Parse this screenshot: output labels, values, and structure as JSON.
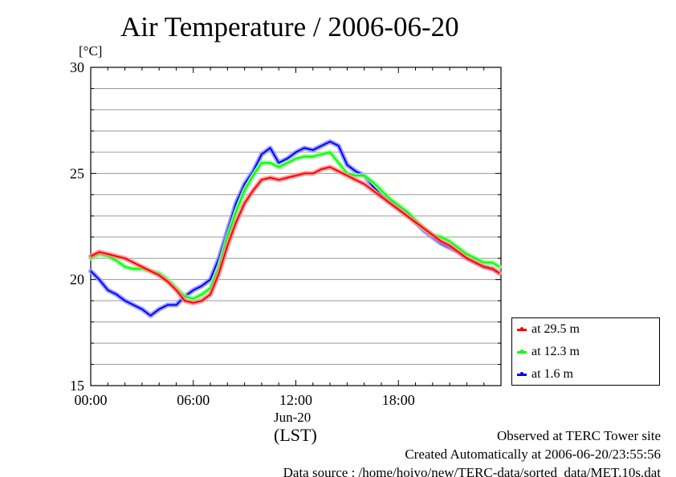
{
  "chart_data": {
    "type": "line",
    "title": "Air Temperature / 2006-06-20",
    "ylabel": "[°C]",
    "xlabel": "(LST)",
    "date_label": "Jun-20",
    "x_unit": "hours since 2006-06-20 00:00 LST",
    "xlim": [
      0,
      24
    ],
    "ylim": [
      15,
      30
    ],
    "x_ticks": [
      0,
      6,
      12,
      18
    ],
    "x_tick_labels": [
      "00:00",
      "06:00",
      "12:00",
      "18:00"
    ],
    "y_ticks": [
      15,
      20,
      25,
      30
    ],
    "y_tick_labels": [
      "15",
      "20",
      "25",
      "30"
    ],
    "grid": true,
    "legend_position": "bottom-right, outside plot",
    "x": [
      0,
      0.5,
      1,
      1.5,
      2,
      2.5,
      3,
      3.5,
      4,
      4.5,
      5,
      5.5,
      6,
      6.5,
      7,
      7.5,
      8,
      8.5,
      9,
      9.5,
      10,
      10.5,
      11,
      11.5,
      12,
      12.5,
      13,
      13.5,
      14,
      14.5,
      15,
      15.5,
      16,
      16.5,
      17,
      17.5,
      18,
      18.5,
      19,
      19.5,
      20,
      20.5,
      21,
      21.5,
      22,
      22.5,
      23,
      23.5,
      23.9
    ],
    "series": [
      {
        "name": "at 29.5 m",
        "color": "#ff0000",
        "values": [
          21.1,
          21.3,
          21.2,
          21.1,
          21.0,
          20.8,
          20.6,
          20.4,
          20.2,
          19.9,
          19.5,
          19.0,
          18.9,
          19.0,
          19.3,
          20.3,
          21.6,
          22.7,
          23.6,
          24.2,
          24.7,
          24.8,
          24.7,
          24.8,
          24.9,
          25.0,
          25.0,
          25.2,
          25.3,
          25.1,
          24.9,
          24.7,
          24.5,
          24.2,
          23.9,
          23.6,
          23.3,
          23.0,
          22.7,
          22.4,
          22.1,
          21.8,
          21.6,
          21.3,
          21.0,
          20.8,
          20.6,
          20.5,
          20.3
        ]
      },
      {
        "name": "at 12.3 m",
        "color": "#00ff00",
        "values": [
          21.0,
          21.2,
          21.1,
          20.9,
          20.6,
          20.5,
          20.5,
          20.4,
          20.3,
          20.0,
          19.6,
          19.2,
          19.1,
          19.3,
          19.6,
          20.6,
          22.0,
          23.2,
          24.2,
          24.9,
          25.5,
          25.5,
          25.3,
          25.5,
          25.7,
          25.8,
          25.8,
          25.9,
          26.0,
          25.5,
          25.0,
          24.9,
          24.9,
          24.6,
          24.2,
          23.8,
          23.5,
          23.2,
          22.8,
          22.4,
          22.1,
          22.0,
          21.8,
          21.5,
          21.2,
          21.0,
          20.8,
          20.8,
          20.6
        ]
      },
      {
        "name": "at 1.6 m",
        "color": "#0000ff",
        "values": [
          20.4,
          20.0,
          19.5,
          19.3,
          19.0,
          18.8,
          18.6,
          18.3,
          18.6,
          18.8,
          18.8,
          19.2,
          19.5,
          19.7,
          20.0,
          21.0,
          22.3,
          23.6,
          24.5,
          25.1,
          25.9,
          26.2,
          25.5,
          25.7,
          26.0,
          26.2,
          26.1,
          26.3,
          26.5,
          26.3,
          25.4,
          25.1,
          24.9,
          24.4,
          24.0,
          23.7,
          23.4,
          23.1,
          22.7,
          22.3,
          22.0,
          21.7,
          21.5,
          21.3,
          21.0,
          20.8,
          20.6,
          20.5,
          20.3
        ]
      }
    ]
  },
  "footer": {
    "line1": "Observed at TERC Tower site",
    "line2": "Created Automatically at 2006-06-20/23:55:56",
    "line3": "Data source : /home/hoivo/new/TERC-data/sorted_data/MET.10s.dat"
  }
}
